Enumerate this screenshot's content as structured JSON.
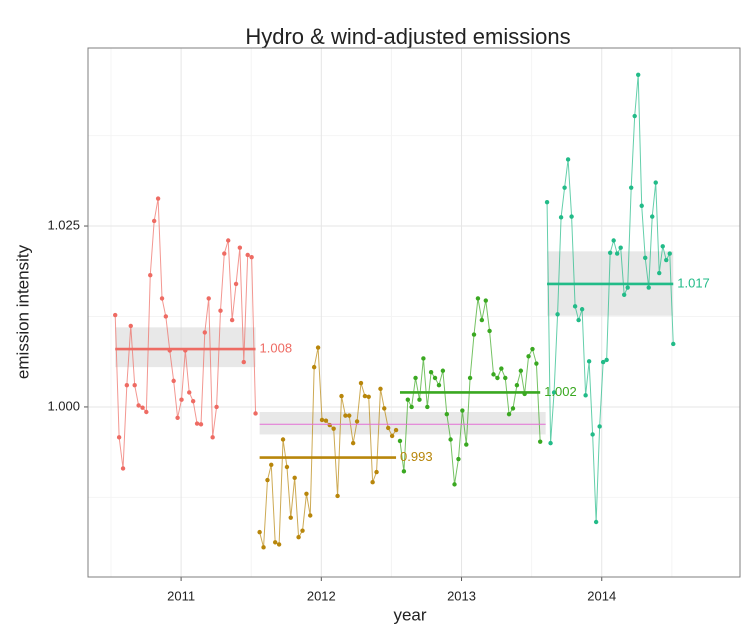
{
  "chart_data": {
    "type": "line",
    "title": "Hydro & wind-adjusted emissions",
    "xlabel": "year",
    "ylabel": "emission intensity",
    "xlim": [
      2010.336,
      2014.986
    ],
    "ylim": [
      0.9765,
      1.0496
    ],
    "xticks": [
      2011,
      2012,
      2013,
      2014
    ],
    "yticks": [
      {
        "value": 1,
        "label": "1.000"
      },
      1.025
    ],
    "xminor": [
      2010.5,
      2011.5,
      2012.5,
      2013.5,
      2014.5
    ],
    "yminor": [
      0.9875,
      1.0125,
      1.0375
    ],
    "grid": true,
    "series": [
      {
        "color": "#ee6b63",
        "mean": 1.008,
        "band": [
          1.0055,
          1.011
        ],
        "x": [
          2010.53,
          2010.558,
          2010.586,
          2010.613,
          2010.641,
          2010.669,
          2010.697,
          2010.725,
          2010.752,
          2010.78,
          2010.808,
          2010.836,
          2010.864,
          2010.891,
          2010.919,
          2010.947,
          2010.975,
          2011.003,
          2011.03,
          2011.058,
          2011.086,
          2011.114,
          2011.142,
          2011.169,
          2011.197,
          2011.225,
          2011.253,
          2011.281,
          2011.308,
          2011.336,
          2011.364,
          2011.392,
          2011.419,
          2011.447,
          2011.475,
          2011.503,
          2011.531
        ],
        "values": [
          1.0127,
          0.9958,
          0.9915,
          1.003,
          1.0112,
          1.003,
          1.0002,
          0.9999,
          0.9993,
          1.0182,
          1.0257,
          1.0288,
          1.015,
          1.0125,
          1.0078,
          1.0036,
          0.9985,
          1.001,
          1.0078,
          1.002,
          1.0008,
          0.9977,
          0.9976,
          1.0103,
          1.015,
          0.9958,
          1.0,
          1.0133,
          1.0212,
          1.023,
          1.012,
          1.017,
          1.022,
          1.0062,
          1.021,
          1.0207,
          0.9991
        ]
      },
      {
        "color": "#b8860b",
        "mean": 0.993,
        "x": [
          2011.56,
          2011.588,
          2011.616,
          2011.643,
          2011.671,
          2011.699,
          2011.727,
          2011.755,
          2011.782,
          2011.81,
          2011.838,
          2011.866,
          2011.894,
          2011.921,
          2011.949,
          2011.977,
          2012.005,
          2012.033,
          2012.06,
          2012.088,
          2012.116,
          2012.144,
          2012.172,
          2012.199,
          2012.227,
          2012.255,
          2012.283,
          2012.311,
          2012.338,
          2012.366,
          2012.394,
          2012.422,
          2012.449,
          2012.477,
          2012.505,
          2012.533
        ],
        "values": [
          0.9827,
          0.9806,
          0.9899,
          0.992,
          0.9813,
          0.981,
          0.9955,
          0.9917,
          0.9847,
          0.9902,
          0.982,
          0.9829,
          0.988,
          0.985,
          1.0055,
          1.0082,
          0.9982,
          0.9981,
          0.9975,
          0.997,
          0.9877,
          1.0015,
          0.9988,
          0.9988,
          0.995,
          0.998,
          1.0033,
          1.0015,
          1.0014,
          0.9896,
          0.991,
          1.0025,
          0.9998,
          0.9971,
          0.996,
          0.9968
        ]
      },
      {
        "color": "#3aa821",
        "mean": 1.002,
        "x": [
          2012.561,
          2012.589,
          2012.617,
          2012.644,
          2012.672,
          2012.7,
          2012.728,
          2012.756,
          2012.783,
          2012.811,
          2012.839,
          2012.867,
          2012.895,
          2012.922,
          2012.95,
          2012.978,
          2013.006,
          2013.034,
          2013.061,
          2013.089,
          2013.117,
          2013.145,
          2013.173,
          2013.2,
          2013.228,
          2013.256,
          2013.284,
          2013.312,
          2013.339,
          2013.367,
          2013.395,
          2013.423,
          2013.45,
          2013.478,
          2013.506,
          2013.534,
          2013.561
        ],
        "values": [
          0.9953,
          0.9911,
          1.001,
          1.0,
          1.004,
          1.001,
          1.0067,
          1.0,
          1.0048,
          1.004,
          1.003,
          1.005,
          0.999,
          0.9955,
          0.9893,
          0.9928,
          0.9995,
          0.9948,
          1.004,
          1.01,
          1.015,
          1.012,
          1.0147,
          1.0105,
          1.0045,
          1.004,
          1.0053,
          1.004,
          0.999,
          0.9998,
          1.003,
          1.005,
          1.0018,
          1.007,
          1.008,
          1.006,
          0.9952
        ]
      },
      {
        "color": "#22bb88",
        "mean": 1.017,
        "band": [
          1.0126,
          1.0215
        ],
        "x": [
          2013.61,
          2013.635,
          2013.66,
          2013.685,
          2013.71,
          2013.735,
          2013.76,
          2013.785,
          2013.81,
          2013.835,
          2013.86,
          2013.885,
          2013.91,
          2013.935,
          2013.96,
          2013.985,
          2014.01,
          2014.035,
          2014.06,
          2014.085,
          2014.11,
          2014.135,
          2014.16,
          2014.185,
          2014.21,
          2014.235,
          2014.26,
          2014.285,
          2014.31,
          2014.335,
          2014.36,
          2014.385,
          2014.41,
          2014.435,
          2014.46,
          2014.485,
          2014.51
        ],
        "values": [
          1.0283,
          0.995,
          1.002,
          1.0128,
          1.0262,
          1.0303,
          1.0342,
          1.0263,
          1.0139,
          1.012,
          1.0135,
          1.0016,
          1.0063,
          0.9962,
          0.9841,
          0.9973,
          1.0062,
          1.0065,
          1.0213,
          1.023,
          1.0212,
          1.022,
          1.0155,
          1.0165,
          1.0303,
          1.0402,
          1.0459,
          1.0278,
          1.0206,
          1.0165,
          1.0263,
          1.031,
          1.0185,
          1.0222,
          1.0203,
          1.0212,
          1.0087
        ]
      }
    ],
    "reference": {
      "color": "#e36fd4",
      "value": 0.9976,
      "band": [
        0.9962,
        0.9993
      ],
      "x": [
        2011.56,
        2013.6
      ]
    }
  }
}
